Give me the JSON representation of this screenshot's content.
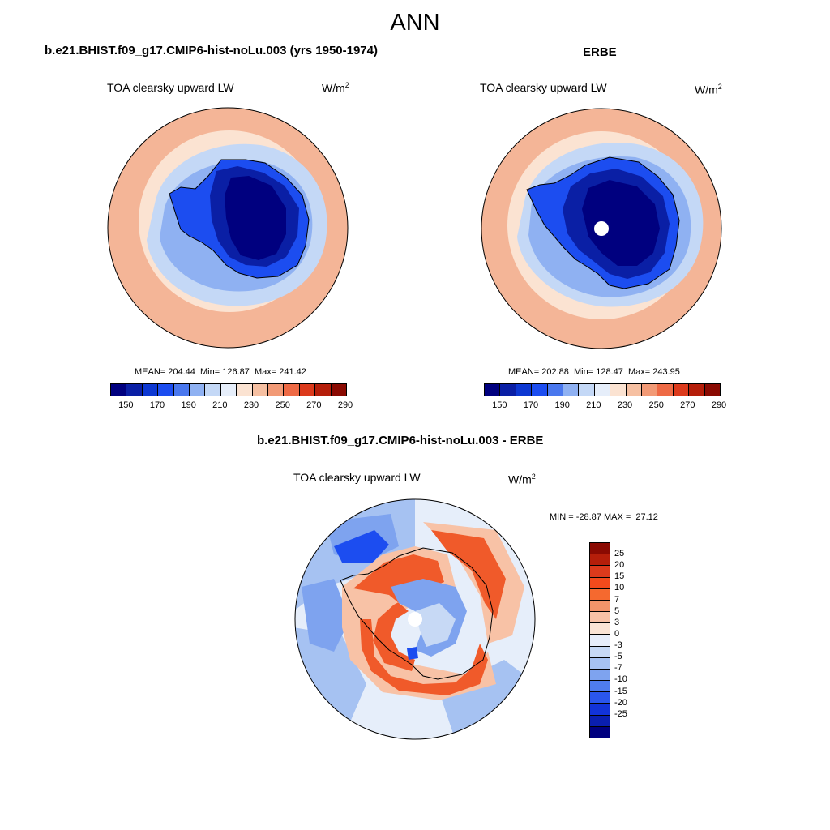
{
  "figure": {
    "title": "ANN"
  },
  "panels": [
    {
      "title": "b.e21.BHIST.f09_g17.CMIP6-hist-noLu.003 (yrs 1950-1974)",
      "variable": "TOA clearsky upward LW",
      "units_base": "W/m",
      "units_exp": "2",
      "stats": "MEAN= 204.44  Min= 126.87  Max= 241.42"
    },
    {
      "title": "ERBE",
      "variable": "TOA clearsky upward LW",
      "units_base": "W/m",
      "units_exp": "2",
      "stats": "MEAN= 202.88  Min= 128.47  Max= 243.95"
    },
    {
      "title": "b.e21.BHIST.f09_g17.CMIP6-hist-noLu.003 - ERBE",
      "variable": "TOA clearsky upward LW",
      "units_base": "W/m",
      "units_exp": "2",
      "stats": "MIN = -28.87 MAX =  27.12"
    }
  ],
  "abs_colorbar": {
    "colors": [
      "#00007f",
      "#0a1fa5",
      "#0d38d2",
      "#1c4df0",
      "#4a78ee",
      "#8fb1f2",
      "#c4d8f6",
      "#e6eefa",
      "#fbe3d2",
      "#f6c0a2",
      "#f29a76",
      "#ee6a45",
      "#dc3a1c",
      "#b51e0a",
      "#8a0a02"
    ],
    "tick_labels": [
      "150",
      "170",
      "190",
      "210",
      "230",
      "250",
      "270",
      "290"
    ]
  },
  "diff_colorbar": {
    "colors": [
      "#8a0a02",
      "#b51e0a",
      "#dc3a1c",
      "#f24a1c",
      "#f5692f",
      "#f3946a",
      "#f8c2a6",
      "#fbe4d4",
      "#e8eefa",
      "#c7d9f5",
      "#a6c2f2",
      "#7ea3ef",
      "#4f7cee",
      "#2a56ec",
      "#1233d8",
      "#0a1fb0",
      "#00007f"
    ],
    "tick_labels": [
      "25",
      "20",
      "15",
      "10",
      "7",
      "5",
      "3",
      "0",
      "-3",
      "-5",
      "-7",
      "-10",
      "-15",
      "-20",
      "-25"
    ]
  },
  "map_colors": {
    "ocean_far": "#f4b597",
    "ocean_mid": "#fbe3d2",
    "ice_edge": "#c4d8f6",
    "sea_ice": "#8fb1f2",
    "coast": "#1c4df0",
    "plateau": "#0a1fa5",
    "interior": "#00007f",
    "diff_neutral": "#e6eefa",
    "diff_pos": "#f05a2a",
    "diff_neg": "#1c4df0"
  }
}
